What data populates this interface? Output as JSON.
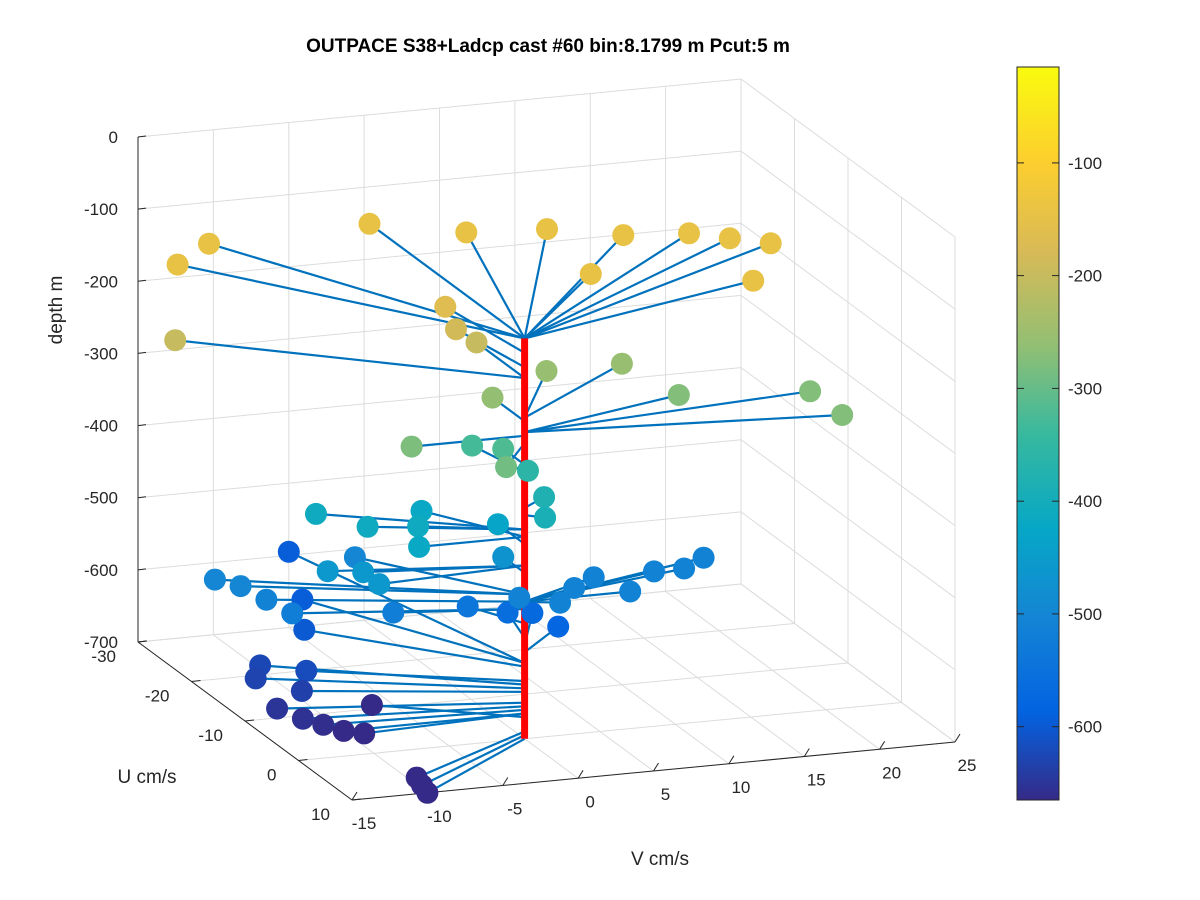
{
  "chart_data": {
    "type": "scatter",
    "title": "OUTPACE S38+Ladcp cast #60 bin:8.1799 m  Pcut:5 m",
    "xlabel": "V cm/s",
    "ylabel": "U cm/s",
    "zlabel": "depth m",
    "xlim": [
      -15,
      25
    ],
    "ylim": [
      -30,
      10
    ],
    "zlim": [
      -700,
      0
    ],
    "x_ticks": [
      "-15",
      "-10",
      "-5",
      "0",
      "5",
      "10",
      "15",
      "20",
      "25"
    ],
    "y_ticks": [
      "-30",
      "-20",
      "-10",
      "0",
      "10"
    ],
    "z_ticks": [
      "0",
      "-100",
      "-200",
      "-300",
      "-400",
      "-500",
      "-600",
      "-700"
    ],
    "grid": true,
    "colorbar": {
      "range": [
        -665,
        -15
      ],
      "ticks": [
        "-100",
        "-200",
        "-300",
        "-400",
        "-500",
        "-600"
      ],
      "colormap": "parula"
    },
    "colors": {
      "stick": "#0072BD",
      "shaft": "#FF0000",
      "grid": "#DCDCDC",
      "axis": "#262626"
    },
    "points": [
      {
        "v": -14.5,
        "u": -24,
        "depth": -145
      },
      {
        "v": -11,
        "u": -28,
        "depth": -145
      },
      {
        "v": 0,
        "u": -29,
        "depth": -145
      },
      {
        "v": 5,
        "u": -25,
        "depth": -145
      },
      {
        "v": 10,
        "u": -24,
        "depth": -145
      },
      {
        "v": 14,
        "u": -21,
        "depth": -145
      },
      {
        "v": 18,
        "u": -20,
        "depth": -145
      },
      {
        "v": 20,
        "u": -18,
        "depth": -145
      },
      {
        "v": 22,
        "u": -16,
        "depth": -145
      },
      {
        "v": 9,
        "u": -13,
        "depth": -145
      },
      {
        "v": 18,
        "u": -8,
        "depth": -145
      },
      {
        "v": -1,
        "u": -12,
        "depth": -165
      },
      {
        "v": -1,
        "u": -10,
        "depth": -185
      },
      {
        "v": 0,
        "u": -9,
        "depth": -200
      },
      {
        "v": -17.5,
        "u": -16,
        "depth": -200
      },
      {
        "v": -7.5,
        "u": 0,
        "depth": -280
      },
      {
        "v": -3,
        "u": 5,
        "depth": -290
      },
      {
        "v": 5,
        "u": -10,
        "depth": -255
      },
      {
        "v": 10,
        "u": -10,
        "depth": -255
      },
      {
        "v": 12,
        "u": -5,
        "depth": -275
      },
      {
        "v": 20,
        "u": -3,
        "depth": -275
      },
      {
        "v": 0,
        "u": -6,
        "depth": -260
      },
      {
        "v": -1,
        "u": -7,
        "depth": -330
      },
      {
        "v": 0,
        "u": -4,
        "depth": -320
      },
      {
        "v": 20,
        "u": 3,
        "depth": -275
      },
      {
        "v": 2,
        "u": -5,
        "depth": -360
      },
      {
        "v": 2,
        "u": -2,
        "depth": -380
      },
      {
        "v": 1,
        "u": 1,
        "depth": -390
      },
      {
        "v": -11,
        "u": -8,
        "depth": -410
      },
      {
        "v": -9,
        "u": -4,
        "depth": -410
      },
      {
        "v": -6,
        "u": -3,
        "depth": -410
      },
      {
        "v": -4,
        "u": -8,
        "depth": -420
      },
      {
        "v": -12,
        "u": -3,
        "depth": -460
      },
      {
        "v": -10,
        "u": -2,
        "depth": -460
      },
      {
        "v": -10,
        "u": 1,
        "depth": -460
      },
      {
        "v": -7,
        "u": 0,
        "depth": -420
      },
      {
        "v": 0,
        "u": -5,
        "depth": -430
      },
      {
        "v": 0,
        "u": -4,
        "depth": -470
      },
      {
        "v": 0,
        "u": -1,
        "depth": -510
      },
      {
        "v": 2,
        "u": 1,
        "depth": -510
      },
      {
        "v": 4,
        "u": -2,
        "depth": -510
      },
      {
        "v": 6,
        "u": -4,
        "depth": -510
      },
      {
        "v": 7,
        "u": 0,
        "depth": -510
      },
      {
        "v": 10,
        "u": -4,
        "depth": -510
      },
      {
        "v": 12,
        "u": -4,
        "depth": -510
      },
      {
        "v": 14,
        "u": -6,
        "depth": -510
      },
      {
        "v": -17,
        "u": -10,
        "depth": -500
      },
      {
        "v": -16,
        "u": -8,
        "depth": -500
      },
      {
        "v": -15,
        "u": -6,
        "depth": -510
      },
      {
        "v": -14,
        "u": -4,
        "depth": -520
      },
      {
        "v": -7,
        "u": -12,
        "depth": -500
      },
      {
        "v": -8,
        "u": -2,
        "depth": -520
      },
      {
        "v": -2,
        "u": -5,
        "depth": -540
      },
      {
        "v": 1,
        "u": -6,
        "depth": -560
      },
      {
        "v": 3,
        "u": -7,
        "depth": -570
      },
      {
        "v": 4,
        "u": -5,
        "depth": -580
      },
      {
        "v": -5,
        "u": -30,
        "depth": -595
      },
      {
        "v": -8,
        "u": -19,
        "depth": -595
      },
      {
        "v": -10,
        "u": -13,
        "depth": -600
      },
      {
        "v": -14,
        "u": -10,
        "depth": -625
      },
      {
        "v": -15,
        "u": -8,
        "depth": -630
      },
      {
        "v": -12,
        "u": -7,
        "depth": -620
      },
      {
        "v": -13,
        "u": -5,
        "depth": -635
      },
      {
        "v": -15,
        "u": -4,
        "depth": -650
      },
      {
        "v": -14,
        "u": -2,
        "depth": -655
      },
      {
        "v": -13,
        "u": -1,
        "depth": -660
      },
      {
        "v": -12,
        "u": 0,
        "depth": -665
      },
      {
        "v": -11,
        "u": 1,
        "depth": -665
      },
      {
        "v": -8,
        "u": -6,
        "depth": -670
      },
      {
        "v": -10,
        "u": 8,
        "depth": -690
      },
      {
        "v": -10,
        "u": 9,
        "depth": -695
      },
      {
        "v": -10,
        "u": 10,
        "depth": -700
      }
    ]
  }
}
